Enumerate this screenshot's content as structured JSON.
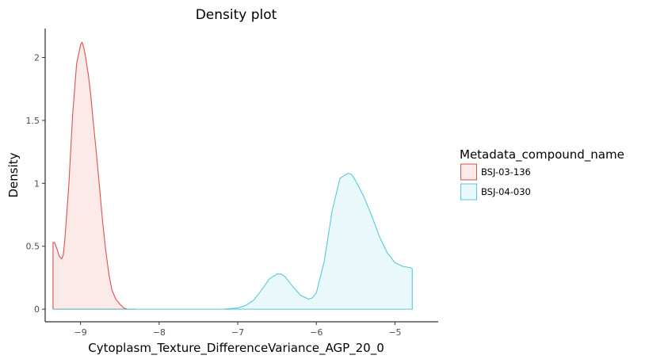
{
  "chart_data": {
    "type": "area",
    "title": "Density plot",
    "xlabel": "Cytoplasm_Texture_DifferenceVariance_AGP_20_0",
    "ylabel": "Density",
    "xlim": [
      -9.45,
      -4.45
    ],
    "ylim": [
      -0.1,
      2.23
    ],
    "xticks": [
      {
        "value": -9,
        "label": "−9"
      },
      {
        "value": -8,
        "label": "−8"
      },
      {
        "value": -7,
        "label": "−7"
      },
      {
        "value": -6,
        "label": "−6"
      },
      {
        "value": -5,
        "label": "−5"
      }
    ],
    "yticks": [
      {
        "value": 0,
        "label": "0"
      },
      {
        "value": 0.5,
        "label": "0.5"
      },
      {
        "value": 1,
        "label": "1"
      },
      {
        "value": 1.5,
        "label": "1.5"
      },
      {
        "value": 2,
        "label": "2"
      }
    ],
    "grid": false,
    "legend": {
      "title": "Metadata_compound_name",
      "position": "right"
    },
    "series": [
      {
        "name": "BSJ-03-136",
        "color": "#d9534f",
        "fill": "#fbeae8",
        "x": [
          -9.35,
          -9.33,
          -9.3,
          -9.27,
          -9.24,
          -9.22,
          -9.2,
          -9.15,
          -9.1,
          -9.05,
          -9.0,
          -8.98,
          -8.96,
          -8.94,
          -8.92,
          -8.9,
          -8.87,
          -8.84,
          -8.8,
          -8.76,
          -8.72,
          -8.68,
          -8.64,
          -8.6,
          -8.55,
          -8.5,
          -8.45,
          -8.4,
          -8.35,
          -8.3
        ],
        "y": [
          0.53,
          0.53,
          0.48,
          0.42,
          0.4,
          0.43,
          0.55,
          0.98,
          1.55,
          1.95,
          2.1,
          2.12,
          2.08,
          2.02,
          1.94,
          1.86,
          1.7,
          1.5,
          1.25,
          0.98,
          0.7,
          0.47,
          0.28,
          0.15,
          0.08,
          0.04,
          0.01,
          0.0,
          0.0,
          0.0
        ]
      },
      {
        "name": "BSJ-04-030",
        "color": "#5bc8d8",
        "fill": "#e9f8fa",
        "x": [
          -9.35,
          -7.2,
          -7.0,
          -6.9,
          -6.8,
          -6.7,
          -6.6,
          -6.5,
          -6.45,
          -6.4,
          -6.3,
          -6.2,
          -6.1,
          -6.05,
          -6.0,
          -5.9,
          -5.8,
          -5.7,
          -5.6,
          -5.55,
          -5.5,
          -5.4,
          -5.3,
          -5.2,
          -5.1,
          -5.0,
          -4.9,
          -4.8,
          -4.78
        ],
        "y": [
          0.0,
          0.0,
          0.01,
          0.03,
          0.07,
          0.15,
          0.24,
          0.28,
          0.28,
          0.26,
          0.18,
          0.11,
          0.08,
          0.09,
          0.13,
          0.38,
          0.78,
          1.04,
          1.08,
          1.07,
          1.02,
          0.9,
          0.75,
          0.58,
          0.45,
          0.37,
          0.34,
          0.33,
          0.32
        ]
      }
    ]
  }
}
